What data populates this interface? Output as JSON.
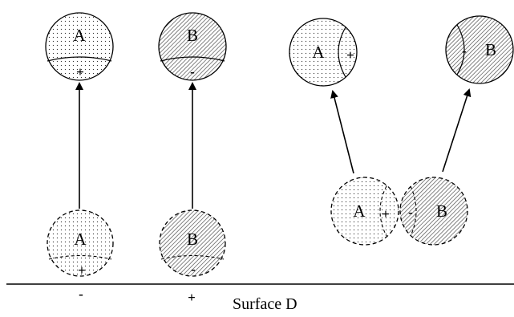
{
  "colors": {
    "line": "#000000",
    "background": "#ffffff",
    "dot_fill": "#333333",
    "hatch_fill": "#888888"
  },
  "labels": {
    "sphere_a": "A",
    "sphere_b": "B",
    "surface": "Surface D"
  },
  "charges": {
    "positive": "+",
    "negative": "-"
  }
}
